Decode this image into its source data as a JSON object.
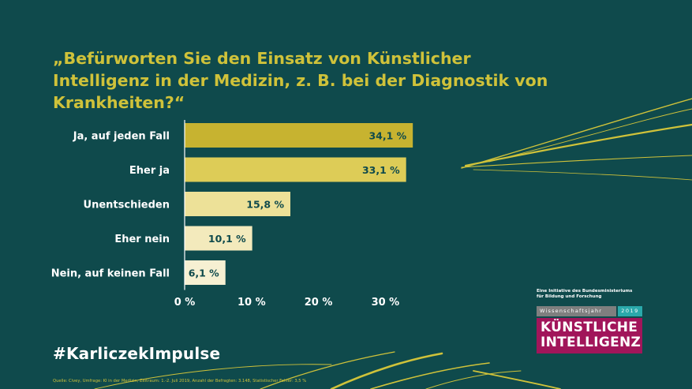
{
  "title": "„Befürworten Sie den Einsatz von Künstlicher Intelligenz in der Medizin, z. B. bei der Diagnostik von Krankheiten?“",
  "chart_data": {
    "type": "bar",
    "orientation": "horizontal",
    "categories": [
      "Ja, auf jeden Fall",
      "Eher ja",
      "Unentschieden",
      "Eher nein",
      "Nein, auf keinen Fall"
    ],
    "values": [
      34.1,
      33.1,
      15.8,
      10.1,
      6.1
    ],
    "data_labels": [
      "34,1 %",
      "33,1 %",
      "15,8 %",
      "10,1 %",
      "6,1 %"
    ],
    "bar_colors": [
      "#c7b330",
      "#ddcc57",
      "#ede198",
      "#f3eabc",
      "#f6f0d2"
    ],
    "xticks": [
      0,
      10,
      20,
      30
    ],
    "xtick_labels": [
      "0 %",
      "10 %",
      "20 %",
      "30 %"
    ],
    "xlim": [
      0,
      35
    ],
    "grid": false,
    "legend": "none"
  },
  "hashtag": "#KarliczekImpulse",
  "source": "Quelle: Civey, Umfrage: KI in der Medizin, Zeitraum: 1.-2. Juli 2019, Anzahl der Befragten: 3.148, Statistischer Fehler: 3,5 %",
  "logo": {
    "initiative_line1": "Eine Initiative des Bundesministeriums",
    "initiative_line2": "für Bildung und Forschung",
    "wissenschaftsjahr": "Wissenschaftsjahr",
    "year": "2019",
    "ki_line1": "KÜNSTLICHE",
    "ki_line2": "INTELLIGENZ"
  },
  "colors": {
    "background": "#0f4a4c",
    "accent": "#cfc23a",
    "category_label": "#ffffff",
    "value_label": "#0f4a4c",
    "ki_box": "#a1155a",
    "year_box": "#2aa9ab"
  }
}
